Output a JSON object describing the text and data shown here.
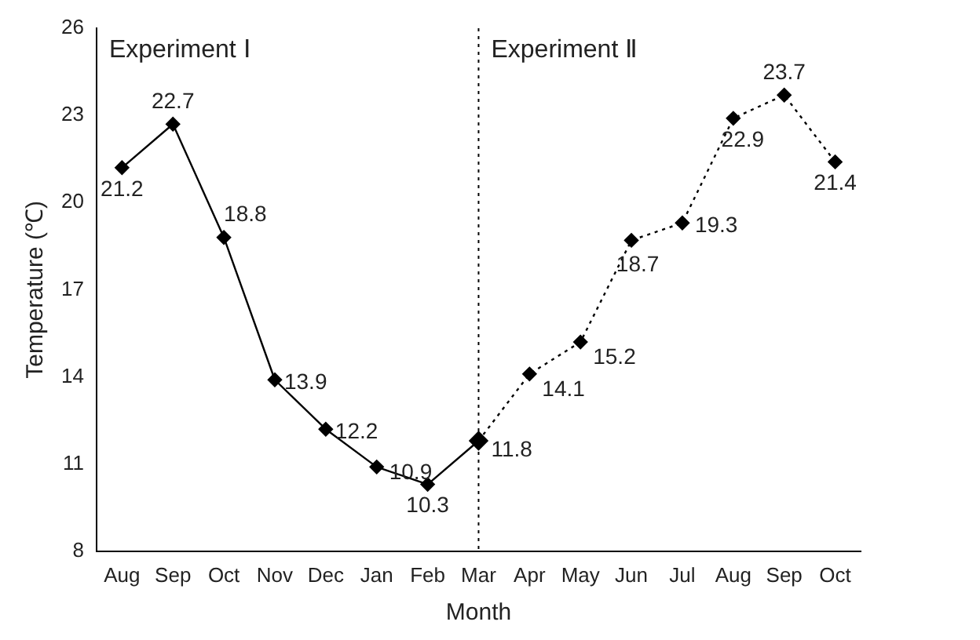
{
  "chart_data": {
    "type": "line",
    "xlabel": "Month",
    "ylabel": "Temperature (℃)",
    "categories": [
      "Aug",
      "Sep",
      "Oct",
      "Nov",
      "Dec",
      "Jan",
      "Feb",
      "Mar",
      "Apr",
      "May",
      "Jun",
      "Jul",
      "Aug",
      "Sep",
      "Oct"
    ],
    "series": [
      {
        "color": "#000000",
        "line_style": "solid",
        "values": [
          21.2,
          22.7,
          18.8,
          13.9,
          12.2,
          10.9,
          10.3,
          11.8,
          null,
          null,
          null,
          null,
          null,
          null,
          null
        ],
        "value_labels": [
          "21.2",
          "22.7",
          "18.8",
          "13.9",
          "12.2",
          "10.9",
          "10.3",
          "11.8",
          null,
          null,
          null,
          null,
          null,
          null,
          null
        ]
      },
      {
        "color": "#000000",
        "line_style": "dotted",
        "values": [
          null,
          null,
          null,
          null,
          null,
          null,
          null,
          11.8,
          14.1,
          15.2,
          18.7,
          19.3,
          22.9,
          23.7,
          21.4
        ],
        "value_labels": [
          null,
          null,
          null,
          null,
          null,
          null,
          null,
          null,
          "14.1",
          "15.2",
          "18.7",
          "19.3",
          "22.9",
          "23.7",
          "21.4"
        ]
      }
    ],
    "ylim": [
      8,
      26
    ],
    "yticks": [
      8,
      11,
      14,
      17,
      20,
      23,
      26
    ],
    "ref_lines": [
      {
        "axis": "x",
        "value": "Mar",
        "line_style": "dotted",
        "color": "#000000"
      }
    ],
    "annotations": [
      "Experiment Ⅰ",
      "Experiment Ⅱ"
    ],
    "marker": "diamond",
    "grid": false,
    "legend": false
  }
}
